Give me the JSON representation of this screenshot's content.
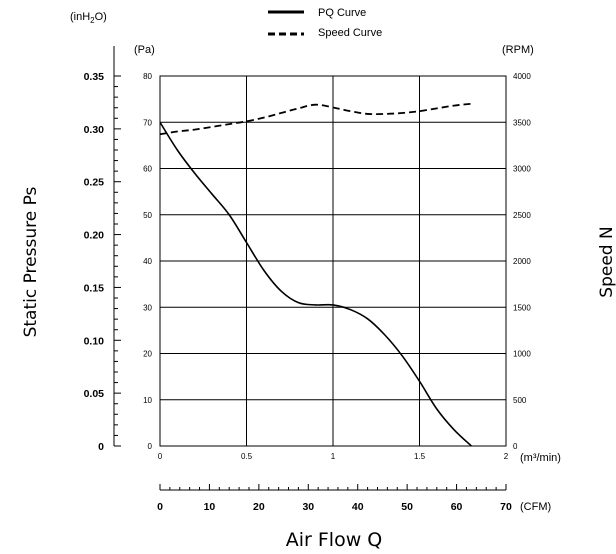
{
  "chart_data": {
    "type": "line",
    "title": "",
    "legend": {
      "placement": "top-center",
      "entries": [
        {
          "label": "PQ Curve",
          "style": "solid"
        },
        {
          "label": "Speed Curve",
          "style": "dashed"
        }
      ]
    },
    "x_axis_primary": {
      "unit_label": "(m³/min)",
      "range": [
        0,
        2
      ],
      "ticks": [
        "0",
        "0.5",
        "1",
        "1.5",
        "2"
      ]
    },
    "x_axis_secondary": {
      "unit_label": "(CFM)",
      "range": [
        0,
        70
      ],
      "ticks": [
        "0",
        "10",
        "20",
        "30",
        "40",
        "50",
        "60",
        "70"
      ]
    },
    "xlabel": "Air Flow Q",
    "y_axis_pa": {
      "unit_label": "(Pa)",
      "range": [
        0,
        80
      ],
      "ticks": [
        "0",
        "10",
        "20",
        "30",
        "40",
        "50",
        "60",
        "70",
        "80"
      ]
    },
    "y_axis_inh2o": {
      "unit_label_parts": [
        "(inH",
        "2",
        "O)"
      ],
      "range": [
        0,
        0.35
      ],
      "ticks": [
        "0",
        "0.05",
        "0.10",
        "0.15",
        "0.20",
        "0.25",
        "0.30",
        "0.35"
      ]
    },
    "y_axis_rpm": {
      "unit_label": "(RPM)",
      "range": [
        0,
        4000
      ],
      "ticks": [
        "0",
        "500",
        "1000",
        "1500",
        "2000",
        "2500",
        "3000",
        "3500",
        "4000"
      ]
    },
    "ylabel": "Static Pressure Ps",
    "ylabel_right": "Speed N",
    "grid": true,
    "series": [
      {
        "name": "PQ Curve",
        "style": "solid",
        "axis": "Pa",
        "x": [
          0,
          0.1,
          0.2,
          0.3,
          0.4,
          0.5,
          0.6,
          0.7,
          0.8,
          0.9,
          1.0,
          1.1,
          1.2,
          1.3,
          1.4,
          1.5,
          1.6,
          1.7,
          1.8
        ],
        "y": [
          70,
          64,
          59,
          54.5,
          50,
          44,
          38,
          33.5,
          31,
          30.5,
          30.5,
          29.5,
          27.5,
          24,
          19.5,
          14,
          8,
          3.5,
          0
        ]
      },
      {
        "name": "Speed Curve",
        "style": "dashed",
        "axis": "RPM",
        "x": [
          0,
          0.1,
          0.2,
          0.3,
          0.4,
          0.5,
          0.6,
          0.7,
          0.8,
          0.9,
          1.0,
          1.1,
          1.2,
          1.3,
          1.4,
          1.5,
          1.6,
          1.7,
          1.8
        ],
        "y": [
          3370,
          3400,
          3420,
          3450,
          3480,
          3510,
          3550,
          3600,
          3650,
          3690,
          3660,
          3620,
          3590,
          3590,
          3600,
          3620,
          3650,
          3680,
          3700
        ]
      }
    ]
  }
}
